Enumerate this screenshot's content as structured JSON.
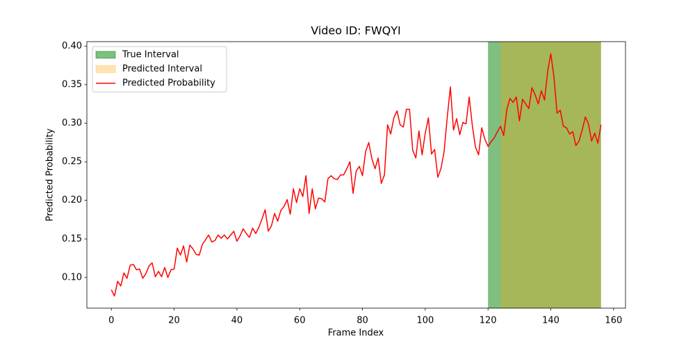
{
  "chart_data": {
    "type": "line",
    "title": "Video ID: FWQYI",
    "xlabel": "Frame Index",
    "ylabel": "Predicted Probability",
    "x": [
      0,
      1,
      2,
      3,
      4,
      5,
      6,
      7,
      8,
      9,
      10,
      11,
      12,
      13,
      14,
      15,
      16,
      17,
      18,
      19,
      20,
      21,
      22,
      23,
      24,
      25,
      26,
      27,
      28,
      29,
      30,
      31,
      32,
      33,
      34,
      35,
      36,
      37,
      38,
      39,
      40,
      41,
      42,
      43,
      44,
      45,
      46,
      47,
      48,
      49,
      50,
      51,
      52,
      53,
      54,
      55,
      56,
      57,
      58,
      59,
      60,
      61,
      62,
      63,
      64,
      65,
      66,
      67,
      68,
      69,
      70,
      71,
      72,
      73,
      74,
      75,
      76,
      77,
      78,
      79,
      80,
      81,
      82,
      83,
      84,
      85,
      86,
      87,
      88,
      89,
      90,
      91,
      92,
      93,
      94,
      95,
      96,
      97,
      98,
      99,
      100,
      101,
      102,
      103,
      104,
      105,
      106,
      107,
      108,
      109,
      110,
      111,
      112,
      113,
      114,
      115,
      116,
      117,
      118,
      119,
      120,
      121,
      122,
      123,
      124,
      125,
      126,
      127,
      128,
      129,
      130,
      131,
      132,
      133,
      134,
      135,
      136,
      137,
      138,
      139,
      140,
      141,
      142,
      143,
      144,
      145,
      146,
      147,
      148,
      149,
      150,
      151,
      152,
      153,
      154,
      155,
      156
    ],
    "spans": [
      {
        "name": "True Interval",
        "color": "#008000",
        "alpha": 0.5,
        "x": [
          120,
          156
        ]
      },
      {
        "name": "Predicted Interval",
        "color": "#ffa500",
        "alpha": 0.3,
        "x": [
          124,
          156
        ]
      }
    ],
    "series": [
      {
        "name": "Predicted Probability",
        "color": "#ff0000",
        "values": [
          0.084,
          0.076,
          0.095,
          0.089,
          0.106,
          0.099,
          0.116,
          0.117,
          0.11,
          0.111,
          0.099,
          0.105,
          0.115,
          0.119,
          0.101,
          0.108,
          0.101,
          0.113,
          0.1,
          0.11,
          0.111,
          0.138,
          0.129,
          0.141,
          0.12,
          0.142,
          0.137,
          0.13,
          0.129,
          0.143,
          0.149,
          0.155,
          0.146,
          0.148,
          0.155,
          0.151,
          0.155,
          0.15,
          0.155,
          0.16,
          0.147,
          0.154,
          0.163,
          0.157,
          0.152,
          0.164,
          0.157,
          0.165,
          0.176,
          0.188,
          0.16,
          0.167,
          0.183,
          0.173,
          0.187,
          0.192,
          0.201,
          0.182,
          0.215,
          0.197,
          0.215,
          0.205,
          0.232,
          0.183,
          0.215,
          0.189,
          0.203,
          0.202,
          0.198,
          0.228,
          0.232,
          0.228,
          0.227,
          0.233,
          0.233,
          0.241,
          0.25,
          0.209,
          0.238,
          0.244,
          0.232,
          0.263,
          0.275,
          0.254,
          0.241,
          0.255,
          0.222,
          0.233,
          0.298,
          0.286,
          0.307,
          0.316,
          0.298,
          0.295,
          0.318,
          0.318,
          0.265,
          0.255,
          0.29,
          0.259,
          0.287,
          0.307,
          0.26,
          0.266,
          0.23,
          0.241,
          0.263,
          0.307,
          0.347,
          0.291,
          0.306,
          0.285,
          0.301,
          0.299,
          0.334,
          0.297,
          0.269,
          0.259,
          0.294,
          0.279,
          0.27,
          0.276,
          0.281,
          0.289,
          0.296,
          0.284,
          0.318,
          0.332,
          0.327,
          0.334,
          0.303,
          0.331,
          0.325,
          0.319,
          0.346,
          0.337,
          0.325,
          0.342,
          0.33,
          0.367,
          0.39,
          0.36,
          0.313,
          0.317,
          0.296,
          0.294,
          0.286,
          0.289,
          0.271,
          0.277,
          0.291,
          0.308,
          0.299,
          0.277,
          0.287,
          0.274,
          0.298
        ]
      }
    ],
    "xlim": [
      -7.8,
      163.8
    ],
    "xticks": [
      0,
      20,
      40,
      60,
      80,
      100,
      120,
      140,
      160
    ],
    "ylim": [
      0.0603,
      0.4057
    ],
    "yticks": [
      {
        "value": 0.1,
        "label": "0.10"
      },
      0.15,
      {
        "value": 0.2,
        "label": "0.20"
      },
      0.25,
      {
        "value": 0.3,
        "label": "0.30"
      },
      0.35,
      {
        "value": 0.4,
        "label": "0.40"
      }
    ],
    "legend": "upper left"
  }
}
